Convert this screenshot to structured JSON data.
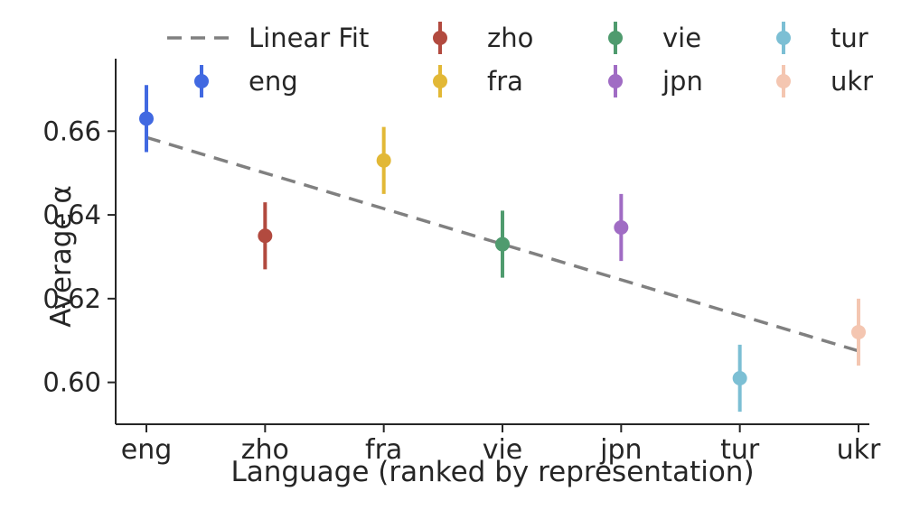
{
  "chart_data": {
    "type": "scatter",
    "title": "",
    "xlabel": "Language (ranked by representation)",
    "ylabel": "Average α",
    "categories": [
      "eng",
      "zho",
      "fra",
      "vie",
      "jpn",
      "tur",
      "ukr"
    ],
    "ylim": [
      0.59,
      0.673
    ],
    "yticks": [
      "0.60",
      "0.62",
      "0.64",
      "0.66"
    ],
    "ytick_values": [
      0.6,
      0.62,
      0.64,
      0.66
    ],
    "grid": false,
    "legend_position": "top",
    "axis_color": "#262626",
    "series": [
      {
        "name": "eng",
        "color": "#4169e1",
        "value": 0.663,
        "err_low": 0.655,
        "err_high": 0.671
      },
      {
        "name": "zho",
        "color": "#b24a3f",
        "value": 0.635,
        "err_low": 0.627,
        "err_high": 0.643
      },
      {
        "name": "fra",
        "color": "#e2b836",
        "value": 0.653,
        "err_low": 0.645,
        "err_high": 0.661
      },
      {
        "name": "vie",
        "color": "#4f9b6e",
        "value": 0.633,
        "err_low": 0.625,
        "err_high": 0.641
      },
      {
        "name": "jpn",
        "color": "#a06cc4",
        "value": 0.637,
        "err_low": 0.629,
        "err_high": 0.645
      },
      {
        "name": "tur",
        "color": "#7cbfd4",
        "value": 0.601,
        "err_low": 0.593,
        "err_high": 0.609
      },
      {
        "name": "ukr",
        "color": "#f4c6b1",
        "value": 0.612,
        "err_low": 0.604,
        "err_high": 0.62
      }
    ],
    "linear_fit": {
      "label": "Linear Fit",
      "color": "#808080",
      "start_category": "eng",
      "start_value": 0.6585,
      "end_category": "ukr",
      "end_value": 0.6075
    },
    "legend": {
      "ncols": 4,
      "entries": [
        {
          "label": "Linear Fit",
          "type": "line"
        },
        {
          "label": "eng",
          "type": "marker"
        },
        {
          "label": "zho",
          "type": "marker"
        },
        {
          "label": "fra",
          "type": "marker"
        },
        {
          "label": "vie",
          "type": "marker"
        },
        {
          "label": "jpn",
          "type": "marker"
        },
        {
          "label": "tur",
          "type": "marker"
        },
        {
          "label": "ukr",
          "type": "marker"
        }
      ]
    }
  }
}
